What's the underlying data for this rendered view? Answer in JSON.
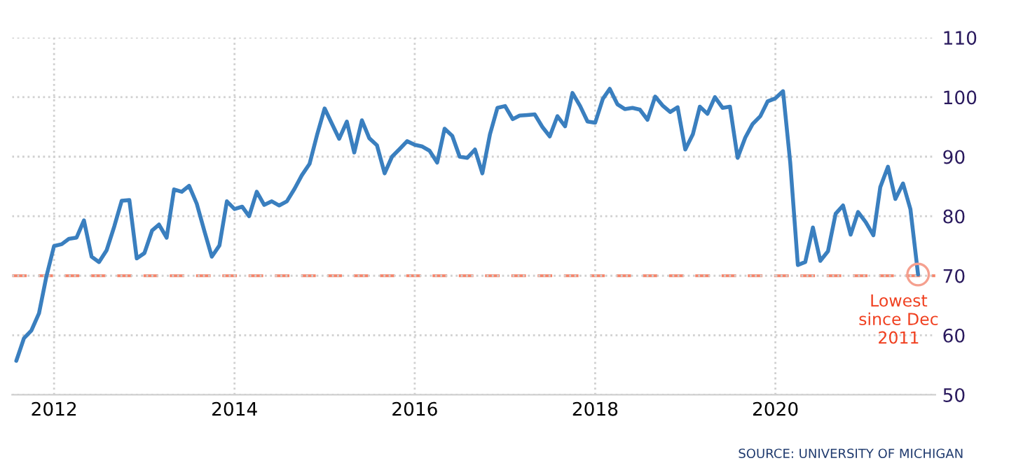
{
  "chart_data": {
    "type": "line",
    "x": [
      "2011-08",
      "2011-09",
      "2011-10",
      "2011-11",
      "2011-12",
      "2012-01",
      "2012-02",
      "2012-03",
      "2012-04",
      "2012-05",
      "2012-06",
      "2012-07",
      "2012-08",
      "2012-09",
      "2012-10",
      "2012-11",
      "2012-12",
      "2013-01",
      "2013-02",
      "2013-03",
      "2013-04",
      "2013-05",
      "2013-06",
      "2013-07",
      "2013-08",
      "2013-09",
      "2013-10",
      "2013-11",
      "2013-12",
      "2014-01",
      "2014-02",
      "2014-03",
      "2014-04",
      "2014-05",
      "2014-06",
      "2014-07",
      "2014-08",
      "2014-09",
      "2014-10",
      "2014-11",
      "2014-12",
      "2015-01",
      "2015-02",
      "2015-03",
      "2015-04",
      "2015-05",
      "2015-06",
      "2015-07",
      "2015-08",
      "2015-09",
      "2015-10",
      "2015-11",
      "2015-12",
      "2016-01",
      "2016-02",
      "2016-03",
      "2016-04",
      "2016-05",
      "2016-06",
      "2016-07",
      "2016-08",
      "2016-09",
      "2016-10",
      "2016-11",
      "2016-12",
      "2017-01",
      "2017-02",
      "2017-03",
      "2017-04",
      "2017-05",
      "2017-06",
      "2017-07",
      "2017-08",
      "2017-09",
      "2017-10",
      "2017-11",
      "2017-12",
      "2018-01",
      "2018-02",
      "2018-03",
      "2018-04",
      "2018-05",
      "2018-06",
      "2018-07",
      "2018-08",
      "2018-09",
      "2018-10",
      "2018-11",
      "2018-12",
      "2019-01",
      "2019-02",
      "2019-03",
      "2019-04",
      "2019-05",
      "2019-06",
      "2019-07",
      "2019-08",
      "2019-09",
      "2019-10",
      "2019-11",
      "2019-12",
      "2020-01",
      "2020-02",
      "2020-03",
      "2020-04",
      "2020-05",
      "2020-06",
      "2020-07",
      "2020-08",
      "2020-09",
      "2020-10",
      "2020-11",
      "2020-12",
      "2021-01",
      "2021-02",
      "2021-03",
      "2021-04",
      "2021-05",
      "2021-06",
      "2021-07",
      "2021-08"
    ],
    "series": [
      {
        "color": "#3a7fbf",
        "values": [
          55.7,
          59.5,
          60.8,
          63.7,
          69.9,
          75.0,
          75.3,
          76.2,
          76.4,
          79.3,
          73.2,
          72.3,
          74.3,
          78.3,
          82.6,
          82.7,
          72.9,
          73.8,
          77.6,
          78.6,
          76.4,
          84.5,
          84.1,
          85.1,
          82.1,
          77.5,
          73.2,
          75.1,
          82.5,
          81.2,
          81.6,
          80.0,
          84.1,
          81.9,
          82.5,
          81.8,
          82.5,
          84.6,
          86.9,
          88.8,
          93.6,
          98.1,
          95.4,
          93.0,
          95.9,
          90.7,
          96.1,
          93.1,
          91.9,
          87.2,
          90.0,
          91.3,
          92.6,
          92.0,
          91.7,
          91.0,
          89.0,
          94.7,
          93.5,
          90.0,
          89.8,
          91.2,
          87.2,
          93.8,
          98.2,
          98.5,
          96.3,
          96.9,
          97.0,
          97.1,
          95.0,
          93.4,
          96.8,
          95.1,
          100.7,
          98.5,
          95.9,
          95.7,
          99.7,
          101.4,
          98.8,
          98.0,
          98.2,
          97.9,
          96.2,
          100.1,
          98.6,
          97.5,
          98.3,
          91.2,
          93.8,
          98.4,
          97.2,
          100.0,
          98.2,
          98.4,
          89.8,
          93.2,
          95.5,
          96.8,
          99.3,
          99.8,
          101.0,
          89.1,
          71.8,
          72.3,
          78.1,
          72.5,
          74.1,
          80.4,
          81.8,
          76.9,
          80.7,
          79.0,
          76.8,
          84.9,
          88.3,
          82.9,
          85.5,
          81.2,
          70.2
        ]
      }
    ],
    "xlim": [
      "2011-07-15",
      "2021-10-10"
    ],
    "xticks": [
      {
        "value": "2012-01",
        "label": "2012"
      },
      {
        "value": "2014-01",
        "label": "2014"
      },
      {
        "value": "2016-01",
        "label": "2016"
      },
      {
        "value": "2018-01",
        "label": "2018"
      },
      {
        "value": "2020-01",
        "label": "2020"
      }
    ],
    "ylim": [
      50,
      110
    ],
    "yticks": [
      50,
      60,
      70,
      80,
      90,
      100,
      110
    ],
    "grid": true,
    "ref_lines": [
      {
        "axis": "y",
        "value": 70,
        "color": "#f5846a",
        "line_style": "dashed"
      }
    ],
    "annotations": [
      {
        "text": "Lowest\nsince Dec\n2011",
        "x": "2021-08",
        "y": 70.2
      },
      "SOURCE: UNIVERSITY OF MICHIGAN"
    ]
  }
}
